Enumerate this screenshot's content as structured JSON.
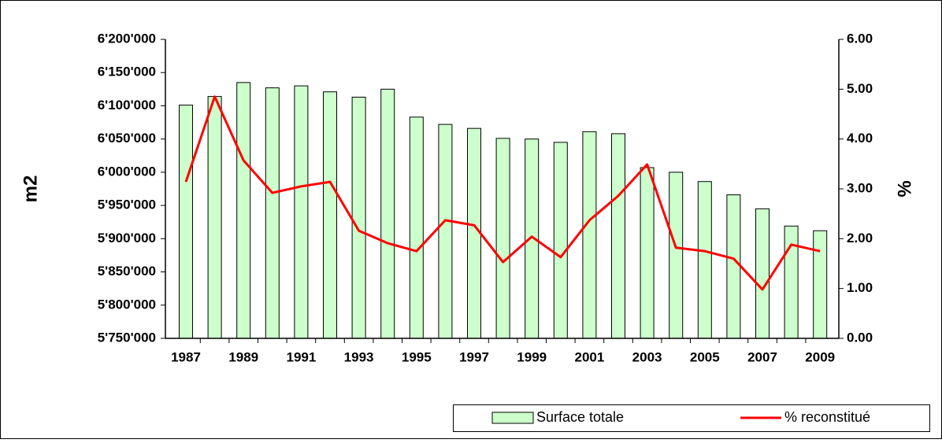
{
  "chart_data": {
    "type": "bar_line",
    "y_label": "m2",
    "y2_label": "%",
    "categories": [
      "1987",
      null,
      "1989",
      null,
      "1991",
      null,
      "1993",
      null,
      "1995",
      null,
      "1997",
      null,
      "1999",
      null,
      "2001",
      null,
      "2003",
      null,
      "2005",
      null,
      "2007",
      null,
      "2009"
    ],
    "series": [
      {
        "name": "Surface totale",
        "type": "bar",
        "color": "#ccffcc",
        "values": [
          6101000,
          6114000,
          6135000,
          6127000,
          6130000,
          6121000,
          6113000,
          6125000,
          6083000,
          6072000,
          6066000,
          6051000,
          6050000,
          6045000,
          6061000,
          6058000,
          6007000,
          6000000,
          5986000,
          5966000,
          5945000,
          5919000,
          5912000
        ]
      },
      {
        "name": "% reconstitué",
        "type": "line",
        "axis": "y2",
        "color": "#ff0000",
        "values": [
          3.14,
          4.85,
          3.57,
          2.92,
          3.05,
          3.14,
          2.16,
          1.91,
          1.75,
          2.37,
          2.27,
          1.53,
          2.04,
          1.63,
          2.37,
          2.86,
          3.49,
          1.82,
          1.75,
          1.6,
          0.98,
          1.88,
          1.75
        ]
      }
    ],
    "ylim": [
      5750000,
      6200000
    ],
    "yticks": [
      {
        "value": 5750000,
        "label": "5'750'000"
      },
      {
        "value": 5800000,
        "label": "5'800'000"
      },
      {
        "value": 5850000,
        "label": "5'850'000"
      },
      {
        "value": 5900000,
        "label": "5'900'000"
      },
      {
        "value": 5950000,
        "label": "5'950'000"
      },
      {
        "value": 6000000,
        "label": "6'000'000"
      },
      {
        "value": 6050000,
        "label": "6'050'000"
      },
      {
        "value": 6100000,
        "label": "6'100'000"
      },
      {
        "value": 6150000,
        "label": "6'150'000"
      },
      {
        "value": 6200000,
        "label": "6'200'000"
      }
    ],
    "y2lim": [
      0,
      6
    ],
    "y2ticks": [
      {
        "value": 0,
        "label": "0.00"
      },
      {
        "value": 1,
        "label": "1.00"
      },
      {
        "value": 2,
        "label": "2.00"
      },
      {
        "value": 3,
        "label": "3.00"
      },
      {
        "value": 4,
        "label": "4.00"
      },
      {
        "value": 5,
        "label": "5.00"
      },
      {
        "value": 6,
        "label": "6.00"
      }
    ],
    "grid": false,
    "legend": "bottom-right"
  }
}
